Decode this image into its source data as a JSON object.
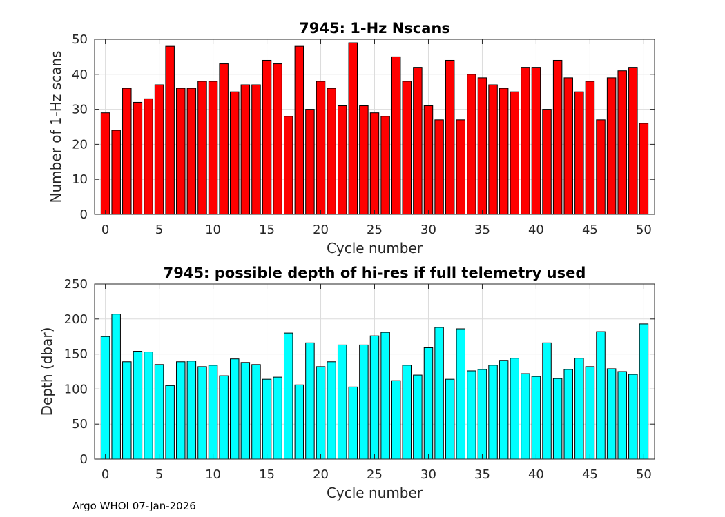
{
  "footer": {
    "text": "Argo WHOI 07-Jan-2026"
  },
  "chart_data": [
    {
      "type": "bar",
      "title": "7945: 1-Hz Nscans",
      "xlabel": "Cycle number",
      "ylabel": "Number of 1-Hz scans",
      "xlim": [
        -1,
        51
      ],
      "ylim": [
        0,
        50
      ],
      "x_ticks": [
        0,
        5,
        10,
        15,
        20,
        25,
        30,
        35,
        40,
        45,
        50
      ],
      "y_ticks": [
        0,
        10,
        20,
        30,
        40,
        50
      ],
      "grid": true,
      "bar_color": "#ff0000",
      "x": [
        0,
        1,
        2,
        3,
        4,
        5,
        6,
        7,
        8,
        9,
        10,
        11,
        12,
        13,
        14,
        15,
        16,
        17,
        18,
        19,
        20,
        21,
        22,
        23,
        24,
        25,
        26,
        27,
        28,
        29,
        30,
        31,
        32,
        33,
        34,
        35,
        36,
        37,
        38,
        39,
        40,
        41,
        42,
        43,
        44,
        45,
        46,
        47,
        48,
        49,
        50
      ],
      "values": [
        29,
        24,
        36,
        32,
        33,
        37,
        48,
        36,
        36,
        38,
        38,
        43,
        35,
        37,
        37,
        44,
        43,
        28,
        48,
        30,
        38,
        36,
        31,
        49,
        31,
        29,
        28,
        45,
        38,
        42,
        31,
        27,
        44,
        27,
        40,
        39,
        37,
        36,
        35,
        42,
        42,
        30,
        44,
        39,
        35,
        38,
        27,
        39,
        41,
        42,
        26
      ]
    },
    {
      "type": "bar",
      "title": "7945: possible depth of hi-res if full telemetry used",
      "xlabel": "Cycle number",
      "ylabel": "Depth (dbar)",
      "xlim": [
        -1,
        51
      ],
      "ylim": [
        0,
        250
      ],
      "x_ticks": [
        0,
        5,
        10,
        15,
        20,
        25,
        30,
        35,
        40,
        45,
        50
      ],
      "y_ticks": [
        0,
        50,
        100,
        150,
        200,
        250
      ],
      "grid": true,
      "bar_color": "#00ffff",
      "x": [
        0,
        1,
        2,
        3,
        4,
        5,
        6,
        7,
        8,
        9,
        10,
        11,
        12,
        13,
        14,
        15,
        16,
        17,
        18,
        19,
        20,
        21,
        22,
        23,
        24,
        25,
        26,
        27,
        28,
        29,
        30,
        31,
        32,
        33,
        34,
        35,
        36,
        37,
        38,
        39,
        40,
        41,
        42,
        43,
        44,
        45,
        46,
        47,
        48,
        49,
        50
      ],
      "values": [
        175,
        207,
        139,
        154,
        153,
        135,
        105,
        139,
        140,
        132,
        134,
        119,
        143,
        138,
        135,
        114,
        117,
        180,
        106,
        166,
        132,
        139,
        163,
        103,
        163,
        176,
        181,
        112,
        134,
        120,
        159,
        188,
        114,
        186,
        126,
        128,
        134,
        141,
        144,
        122,
        118,
        166,
        115,
        128,
        144,
        132,
        182,
        129,
        125,
        121,
        193
      ]
    }
  ]
}
